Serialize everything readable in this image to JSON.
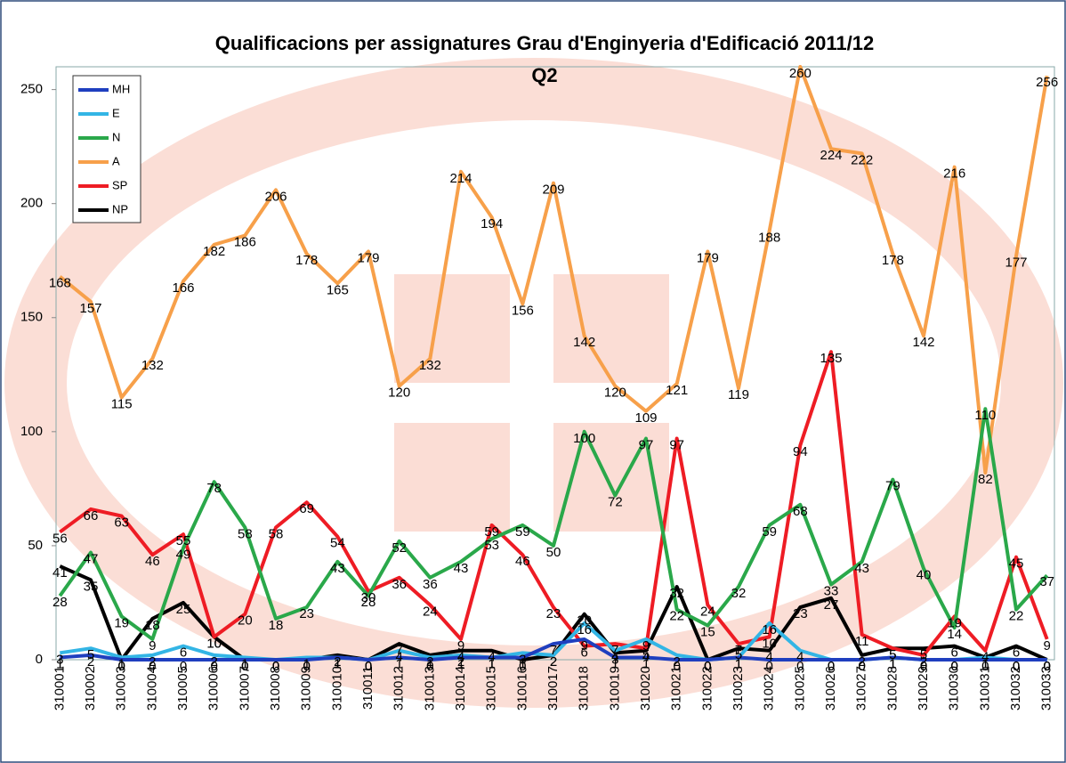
{
  "chart_data": {
    "type": "line",
    "title": "Qualificacions per assignatures Grau d'Enginyeria d'Edificació 2011/12",
    "subtitle": "Q2",
    "categories": [
      "310001",
      "310002",
      "310003",
      "310004",
      "310005",
      "310006",
      "310007",
      "310008",
      "310009",
      "310010",
      "310011",
      "310012",
      "310013",
      "310014",
      "310015",
      "310016",
      "310017",
      "310018",
      "310019",
      "310020",
      "310021",
      "310022",
      "310023",
      "310024",
      "310025",
      "310026",
      "310027",
      "310028",
      "310029",
      "310030",
      "310031",
      "310032",
      "310033"
    ],
    "series": [
      {
        "name": "MH",
        "color": "#1f3fbf",
        "values": [
          1,
          2,
          0,
          0,
          0,
          0,
          0,
          0,
          0,
          1,
          0,
          1,
          0,
          1,
          1,
          1,
          7,
          9,
          1,
          1,
          0,
          0,
          1,
          0,
          0,
          0,
          0,
          1,
          0,
          0,
          0,
          0,
          0
        ]
      },
      {
        "name": "E",
        "color": "#33b5e5",
        "values": [
          3,
          5,
          1,
          2,
          6,
          2,
          1,
          0,
          1,
          1,
          0,
          4,
          1,
          2,
          1,
          3,
          2,
          16,
          4,
          9,
          2,
          0,
          1,
          16,
          4,
          0,
          0,
          1,
          0,
          0,
          1,
          0,
          0
        ]
      },
      {
        "name": "N",
        "color": "#2aa84a",
        "values": [
          28,
          47,
          19,
          9,
          49,
          78,
          58,
          18,
          23,
          43,
          28,
          52,
          36,
          43,
          53,
          59,
          50,
          100,
          72,
          97,
          22,
          15,
          32,
          59,
          68,
          33,
          43,
          79,
          40,
          14,
          110,
          22,
          37
        ]
      },
      {
        "name": "A",
        "color": "#f7a04a",
        "values": [
          168,
          157,
          115,
          132,
          166,
          182,
          186,
          206,
          178,
          165,
          179,
          120,
          132,
          214,
          194,
          156,
          209,
          142,
          120,
          109,
          121,
          179,
          119,
          188,
          260,
          224,
          222,
          178,
          142,
          216,
          82,
          177,
          256
        ]
      },
      {
        "name": "SP",
        "color": "#ee1c24",
        "values": [
          56,
          66,
          63,
          46,
          55,
          10,
          20,
          58,
          69,
          54,
          30,
          36,
          24,
          9,
          59,
          46,
          23,
          6,
          7,
          5,
          97,
          24,
          7,
          10,
          94,
          135,
          11,
          5,
          2,
          19,
          4,
          45,
          9
        ]
      },
      {
        "name": "NP",
        "color": "#000000",
        "values": [
          41,
          35,
          0,
          18,
          25,
          10,
          0,
          0,
          0,
          2,
          0,
          7,
          2,
          4,
          4,
          0,
          2,
          20,
          3,
          4,
          32,
          0,
          5,
          4,
          23,
          27,
          2,
          5,
          5,
          6,
          1,
          6,
          0
        ]
      }
    ],
    "ylim": [
      0,
      260
    ],
    "yticks": [
      0,
      50,
      100,
      150,
      200,
      250
    ],
    "legend": "top-left"
  }
}
